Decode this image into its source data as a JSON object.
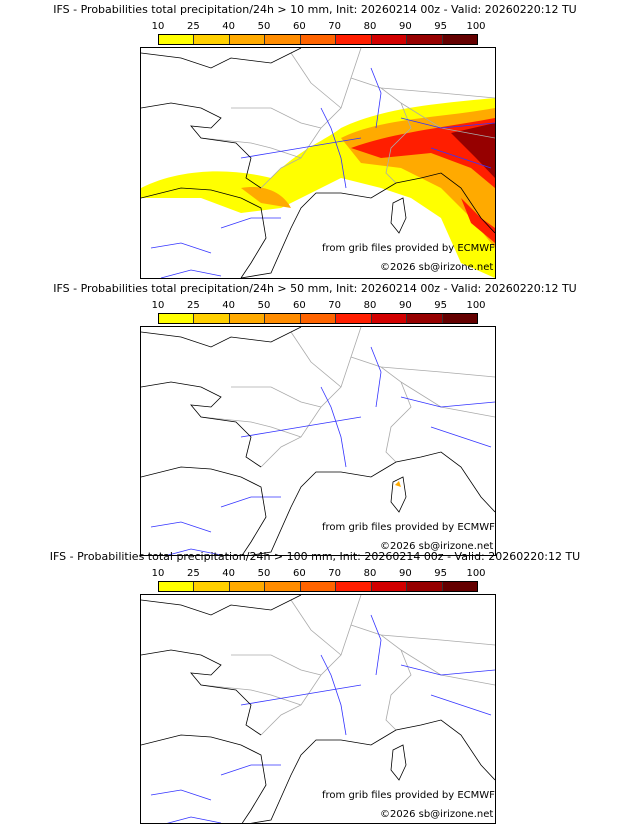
{
  "colorbar": {
    "ticks": [
      "10",
      "25",
      "40",
      "50",
      "60",
      "70",
      "80",
      "90",
      "95",
      "100"
    ],
    "colors": [
      "#ffff00",
      "#ffd000",
      "#ffaa00",
      "#ff8c00",
      "#ff6400",
      "#ff1e00",
      "#d20000",
      "#960000",
      "#640000"
    ]
  },
  "panels": [
    {
      "title": "IFS - Probabilities total precipitation/24h > 10 mm, Init: 20260214 00z - Valid: 20260220:12 TU",
      "source": "from grib files provided by ECMWF",
      "copyright": "©2026 sb@irizone.net",
      "intensity": "high"
    },
    {
      "title": "IFS - Probabilities total precipitation/24h > 50 mm, Init: 20260214 00z - Valid: 20260220:12 TU",
      "source": "from grib files provided by ECMWF",
      "copyright": "©2026 sb@irizone.net",
      "intensity": "trace"
    },
    {
      "title": "IFS - Probabilities total precipitation/24h > 100 mm, Init: 20260214 00z - Valid: 20260220:12 TU",
      "source": "from grib files provided by ECMWF",
      "copyright": "©2026 sb@irizone.net",
      "intensity": "none"
    }
  ]
}
